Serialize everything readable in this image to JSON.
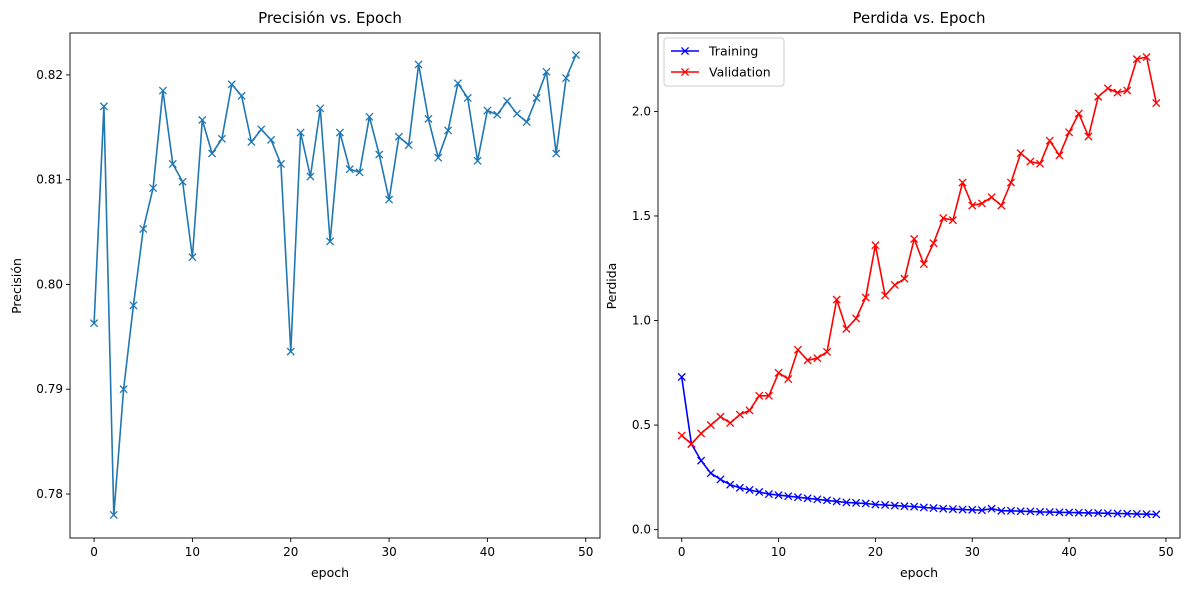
{
  "chart_data": [
    {
      "type": "line",
      "title": "Precisión vs. Epoch",
      "xlabel": "epoch",
      "ylabel": "Precisión",
      "xlim": [
        -2.45,
        51.45
      ],
      "ylim": [
        0.7758,
        0.824
      ],
      "xticks": [
        0,
        10,
        20,
        30,
        40,
        50
      ],
      "xtick_labels": [
        "0",
        "10",
        "20",
        "30",
        "40",
        "50"
      ],
      "yticks": [
        0.78,
        0.79,
        0.8,
        0.81,
        0.82
      ],
      "ytick_labels": [
        "0.78",
        "0.79",
        "0.80",
        "0.81",
        "0.82"
      ],
      "grid": false,
      "legend": null,
      "series": [
        {
          "color": "#1f77b4",
          "marker": "x",
          "x": [
            0,
            1,
            2,
            3,
            4,
            5,
            6,
            7,
            8,
            9,
            10,
            11,
            12,
            13,
            14,
            15,
            16,
            17,
            18,
            19,
            20,
            21,
            22,
            23,
            24,
            25,
            26,
            27,
            28,
            29,
            30,
            31,
            32,
            33,
            34,
            35,
            36,
            37,
            38,
            39,
            40,
            41,
            42,
            43,
            44,
            45,
            46,
            47,
            48,
            49
          ],
          "values": [
            0.7963,
            0.817,
            0.778,
            0.79,
            0.798,
            0.8053,
            0.8092,
            0.8185,
            0.8115,
            0.8098,
            0.8026,
            0.8157,
            0.8125,
            0.8139,
            0.8191,
            0.818,
            0.8136,
            0.8148,
            0.8138,
            0.8115,
            0.7936,
            0.8145,
            0.8103,
            0.8168,
            0.8041,
            0.8145,
            0.811,
            0.8107,
            0.816,
            0.8124,
            0.8081,
            0.8141,
            0.8133,
            0.821,
            0.8158,
            0.8121,
            0.8147,
            0.8192,
            0.8178,
            0.8118,
            0.8166,
            0.8162,
            0.8175,
            0.8163,
            0.8155,
            0.8178,
            0.8203,
            0.8125,
            0.8197,
            0.8219
          ]
        }
      ]
    },
    {
      "type": "line",
      "title": "Perdida vs. Epoch",
      "xlabel": "epoch",
      "ylabel": "Perdida",
      "xlim": [
        -2.45,
        51.45
      ],
      "ylim": [
        -0.04,
        2.375
      ],
      "xticks": [
        0,
        10,
        20,
        30,
        40,
        50
      ],
      "xtick_labels": [
        "0",
        "10",
        "20",
        "30",
        "40",
        "50"
      ],
      "yticks": [
        0.0,
        0.5,
        1.0,
        1.5,
        2.0
      ],
      "ytick_labels": [
        "0.0",
        "0.5",
        "1.0",
        "1.5",
        "2.0"
      ],
      "grid": false,
      "legend": "upper left",
      "series": [
        {
          "name": "Training",
          "color": "#0000ff",
          "marker": "x",
          "x": [
            0,
            1,
            2,
            3,
            4,
            5,
            6,
            7,
            8,
            9,
            10,
            11,
            12,
            13,
            14,
            15,
            16,
            17,
            18,
            19,
            20,
            21,
            22,
            23,
            24,
            25,
            26,
            27,
            28,
            29,
            30,
            31,
            32,
            33,
            34,
            35,
            36,
            37,
            38,
            39,
            40,
            41,
            42,
            43,
            44,
            45,
            46,
            47,
            48,
            49
          ],
          "values": [
            0.73,
            0.41,
            0.33,
            0.27,
            0.24,
            0.215,
            0.2,
            0.19,
            0.18,
            0.17,
            0.165,
            0.16,
            0.155,
            0.15,
            0.145,
            0.14,
            0.135,
            0.13,
            0.128,
            0.125,
            0.12,
            0.118,
            0.115,
            0.112,
            0.11,
            0.106,
            0.103,
            0.1,
            0.098,
            0.096,
            0.095,
            0.093,
            0.1,
            0.09,
            0.09,
            0.088,
            0.087,
            0.085,
            0.084,
            0.083,
            0.082,
            0.081,
            0.08,
            0.079,
            0.078,
            0.077,
            0.076,
            0.075,
            0.074,
            0.073
          ]
        },
        {
          "name": "Validation",
          "color": "#ff0000",
          "marker": "x",
          "x": [
            0,
            1,
            2,
            3,
            4,
            5,
            6,
            7,
            8,
            9,
            10,
            11,
            12,
            13,
            14,
            15,
            16,
            17,
            18,
            19,
            20,
            21,
            22,
            23,
            24,
            25,
            26,
            27,
            28,
            29,
            30,
            31,
            32,
            33,
            34,
            35,
            36,
            37,
            38,
            39,
            40,
            41,
            42,
            43,
            44,
            45,
            46,
            47,
            48,
            49
          ],
          "values": [
            0.45,
            0.41,
            0.46,
            0.5,
            0.54,
            0.51,
            0.55,
            0.57,
            0.64,
            0.64,
            0.75,
            0.72,
            0.86,
            0.81,
            0.82,
            0.85,
            1.1,
            0.96,
            1.01,
            1.11,
            1.36,
            1.12,
            1.17,
            1.2,
            1.39,
            1.27,
            1.37,
            1.49,
            1.48,
            1.66,
            1.55,
            1.56,
            1.59,
            1.55,
            1.66,
            1.8,
            1.76,
            1.75,
            1.86,
            1.79,
            1.9,
            1.99,
            1.88,
            2.07,
            2.11,
            2.09,
            2.1,
            2.25,
            2.26,
            2.04
          ]
        }
      ]
    }
  ]
}
